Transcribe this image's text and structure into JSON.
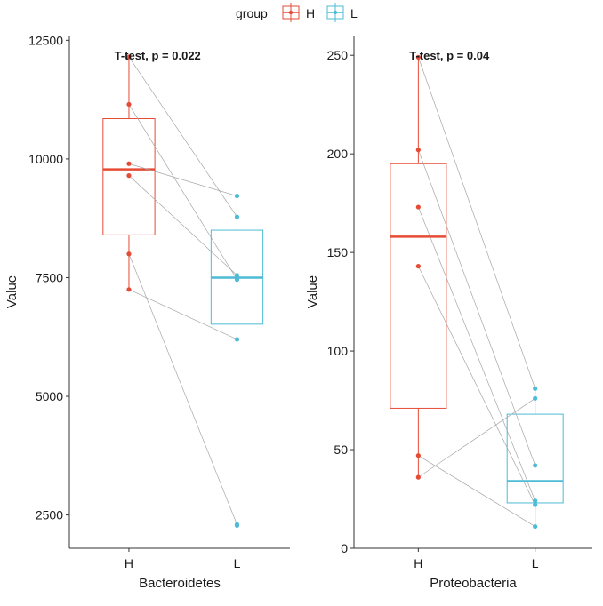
{
  "legend": {
    "title": "group",
    "items": [
      {
        "label": "H",
        "color": "#E64B35"
      },
      {
        "label": "L",
        "color": "#4DBBD5"
      }
    ]
  },
  "chart_data": [
    {
      "type": "boxplot",
      "xlabel": "Bacteroidetes",
      "ylabel": "Value",
      "categories": [
        "H",
        "L"
      ],
      "yticks": [
        2500,
        5000,
        7500,
        10000,
        12500
      ],
      "ylim": [
        1800,
        12600
      ],
      "annotation": "T-test, p = 0.022",
      "boxes": [
        {
          "group": "H",
          "q1": 8400,
          "median": 9780,
          "q3": 10850,
          "whisker_low": 7250,
          "whisker_high": 12150
        },
        {
          "group": "L",
          "q1": 6520,
          "median": 7500,
          "q3": 8500,
          "whisker_low": 6200,
          "whisker_high": 9220
        }
      ],
      "pairs": [
        {
          "H": 12150,
          "L": 8780
        },
        {
          "H": 11150,
          "L": 7460
        },
        {
          "H": 9900,
          "L": 9220
        },
        {
          "H": 9650,
          "L": 7550
        },
        {
          "H": 8000,
          "L": 2300
        },
        {
          "H": 7250,
          "L": 6200
        }
      ],
      "points": {
        "H": [
          12150,
          11150,
          9900,
          9650,
          8000,
          7250
        ],
        "L": [
          9220,
          8780,
          7550,
          7460,
          6200,
          2300,
          2280
        ]
      }
    },
    {
      "type": "boxplot",
      "xlabel": "Proteobacteria",
      "ylabel": "Value",
      "categories": [
        "H",
        "L"
      ],
      "yticks": [
        0,
        50,
        100,
        150,
        200,
        250
      ],
      "ylim": [
        0,
        260
      ],
      "annotation": "T-test, p = 0.04",
      "boxes": [
        {
          "group": "H",
          "q1": 71,
          "median": 158,
          "q3": 195,
          "whisker_low": 36,
          "whisker_high": 249
        },
        {
          "group": "L",
          "q1": 23,
          "median": 34,
          "q3": 68,
          "whisker_low": 11,
          "whisker_high": 81
        }
      ],
      "pairs": [
        {
          "H": 249,
          "L": 81
        },
        {
          "H": 202,
          "L": 42
        },
        {
          "H": 173,
          "L": 24
        },
        {
          "H": 143,
          "L": 22
        },
        {
          "H": 47,
          "L": 11
        },
        {
          "H": 36,
          "L": 76
        }
      ],
      "points": {
        "H": [
          249,
          202,
          173,
          143,
          47,
          36
        ],
        "L": [
          81,
          76,
          42,
          24,
          22,
          11
        ]
      }
    }
  ]
}
